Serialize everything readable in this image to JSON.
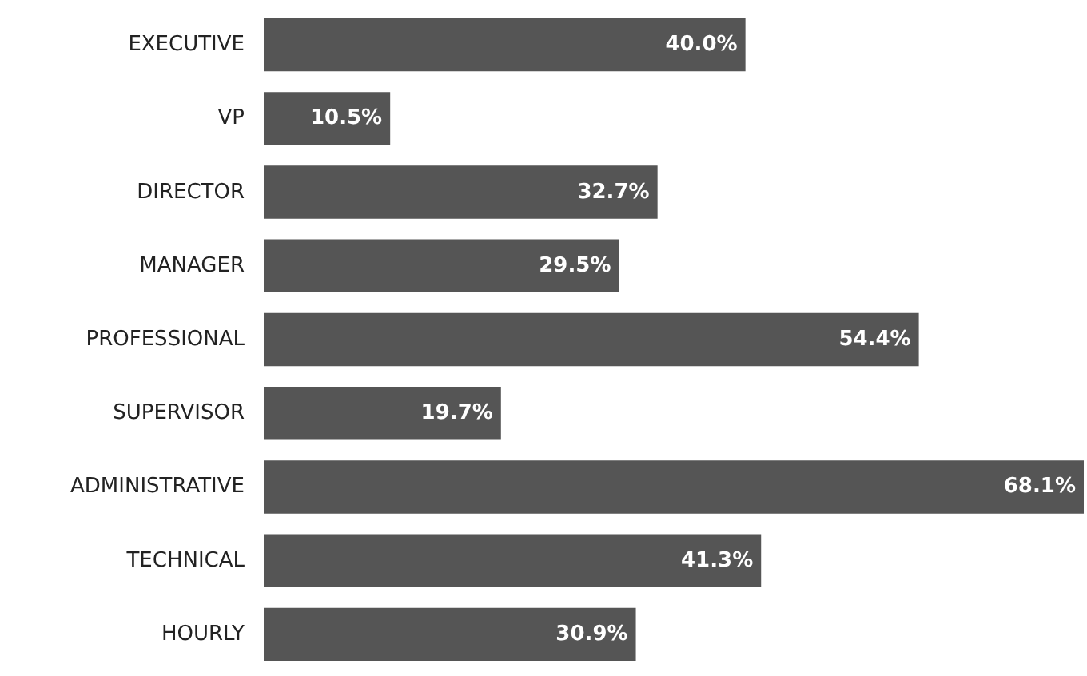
{
  "chart_data": {
    "type": "bar",
    "orientation": "horizontal",
    "categories": [
      "EXECUTIVE",
      "VP",
      "DIRECTOR",
      "MANAGER",
      "PROFESSIONAL",
      "SUPERVISOR",
      "ADMINISTRATIVE",
      "TECHNICAL",
      "HOURLY"
    ],
    "values": [
      40.0,
      10.5,
      32.7,
      29.5,
      54.4,
      19.7,
      68.1,
      41.3,
      30.9
    ],
    "value_labels": [
      "40.0%",
      "10.5%",
      "32.7%",
      "29.5%",
      "54.4%",
      "19.7%",
      "68.1%",
      "41.3%",
      "30.9%"
    ],
    "color": "#555555"
  }
}
